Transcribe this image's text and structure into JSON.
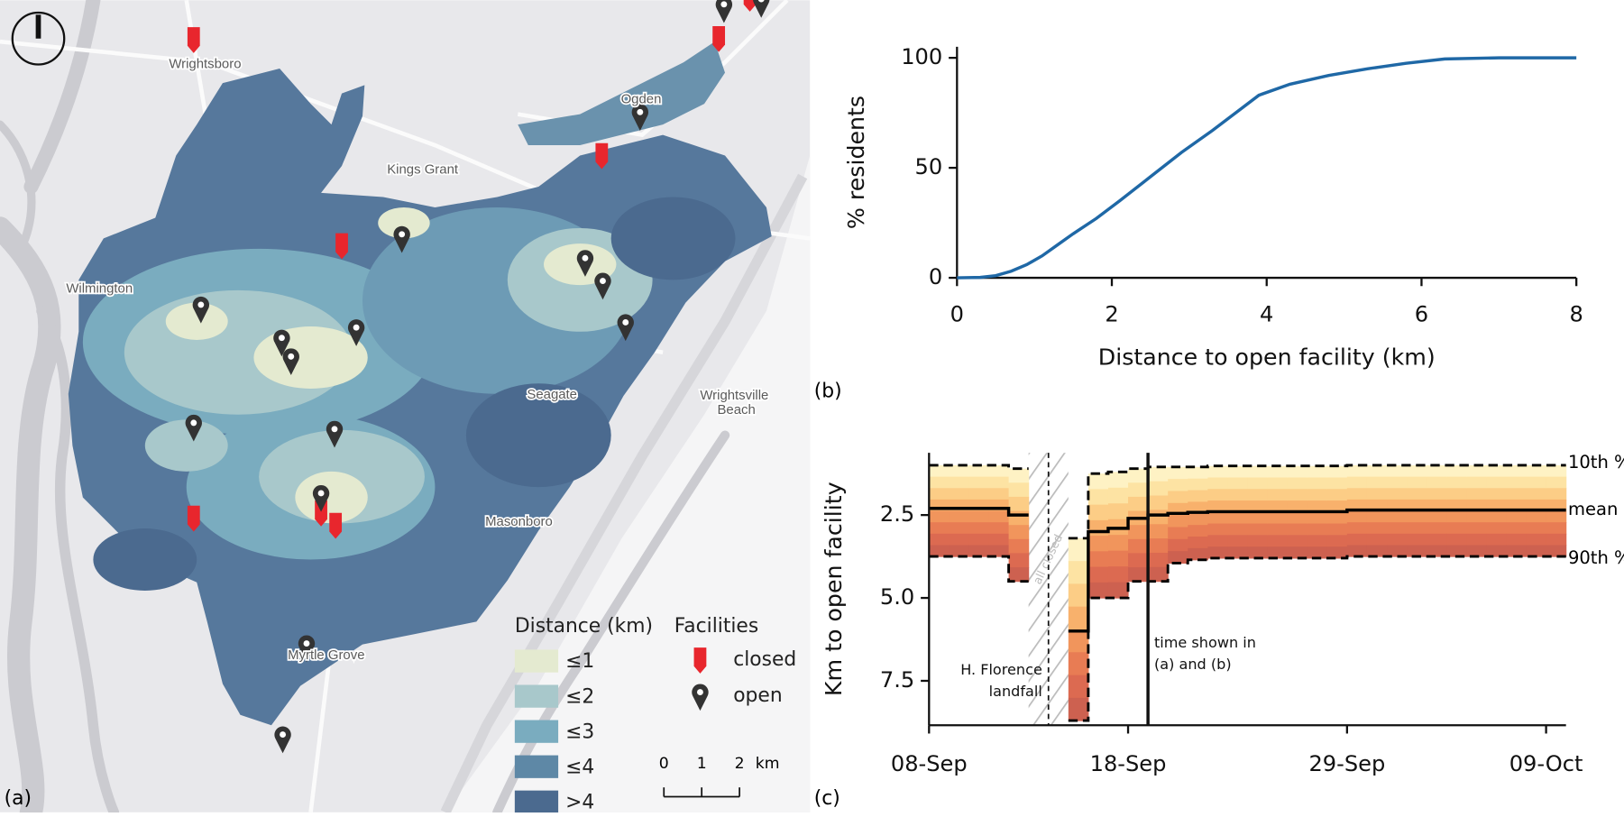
{
  "map": {
    "panel_label": "(a)",
    "places": [
      "Wrightsboro",
      "Kings Grant",
      "Wilmington",
      "Ogden",
      "Seagate",
      "Wrightsville",
      "Beach",
      "Masonboro",
      "Myrtle Grove"
    ],
    "legend": {
      "title": "Distance (km)",
      "items": [
        {
          "label": "≤1",
          "color": "#e4ead0"
        },
        {
          "label": "≤2",
          "color": "#a8c8cb"
        },
        {
          "label": "≤3",
          "color": "#7aacbf"
        },
        {
          "label": "≤4",
          "color": "#5e88a6"
        },
        {
          "label": ">4",
          "color": "#4b6a8f"
        }
      ]
    },
    "facilities_legend": {
      "title": "Facilities",
      "items": [
        {
          "label": "closed",
          "color": "#e8262d"
        },
        {
          "label": "open",
          "color": "#333333"
        }
      ]
    },
    "scale": {
      "labels": [
        "0",
        "1",
        "2"
      ],
      "unit": "km"
    }
  },
  "chart_data": [
    {
      "type": "line",
      "panel_label": "(b)",
      "x_label": "Distance to open facility (km)",
      "y_label": "% residents",
      "color": "#1f68a6",
      "x": [
        0,
        0.3,
        0.5,
        0.7,
        0.9,
        1.1,
        1.3,
        1.5,
        1.8,
        2.1,
        2.5,
        2.9,
        3.3,
        3.6,
        3.9,
        4.3,
        4.8,
        5.3,
        5.8,
        6.3,
        7,
        8
      ],
      "values": [
        0,
        0.2,
        1,
        3,
        6,
        10,
        15,
        20,
        27,
        35,
        46,
        57,
        67,
        75,
        83,
        88,
        92,
        95,
        97.5,
        99.5,
        100,
        100
      ],
      "xlim": [
        0,
        8
      ],
      "xticks": [
        0,
        2,
        4,
        6,
        8
      ],
      "ylim": [
        0,
        105
      ],
      "yticks": [
        0,
        50,
        100
      ]
    },
    {
      "type": "step",
      "panel_label": "(c)",
      "y_label": "Km to open facility",
      "x": [
        "08-Sep",
        "09-Sep",
        "10-Sep",
        "11-Sep",
        "12-Sep",
        "13-Sep",
        "14-Sep",
        "15-Sep",
        "16-Sep",
        "17-Sep",
        "18-Sep",
        "19-Sep",
        "20-Sep",
        "21-Sep",
        "22-Sep",
        "23-Sep",
        "24-Sep",
        "25-Sep",
        "26-Sep",
        "27-Sep",
        "28-Sep",
        "29-Sep",
        "30-Sep",
        "01-Oct",
        "02-Oct",
        "03-Oct",
        "04-Oct",
        "05-Oct",
        "06-Oct",
        "07-Oct",
        "08-Oct",
        "09-Oct",
        "10-Oct"
      ],
      "series": [
        {
          "name": "10th %",
          "color": "#000000",
          "dashed": true,
          "values": [
            1.0,
            1.0,
            1.0,
            1.0,
            1.1,
            null,
            null,
            3.2,
            1.25,
            1.2,
            1.1,
            1.05,
            1.05,
            1.05,
            1.02,
            1.02,
            1.02,
            1.02,
            1.02,
            1.02,
            1.02,
            1.0,
            1.0,
            1.0,
            1.0,
            1.0,
            1.0,
            1.0,
            1.0,
            1.0,
            1.0,
            1.0,
            1.0
          ]
        },
        {
          "name": "mean",
          "color": "#000000",
          "dashed": false,
          "values": [
            2.3,
            2.3,
            2.3,
            2.3,
            2.5,
            null,
            null,
            6.0,
            3.0,
            2.9,
            2.6,
            2.5,
            2.45,
            2.42,
            2.4,
            2.4,
            2.4,
            2.4,
            2.4,
            2.4,
            2.4,
            2.35,
            2.35,
            2.35,
            2.35,
            2.35,
            2.35,
            2.35,
            2.35,
            2.35,
            2.35,
            2.35,
            2.35
          ]
        },
        {
          "name": "90th %",
          "color": "#000000",
          "dashed": true,
          "values": [
            3.75,
            3.75,
            3.75,
            3.75,
            4.5,
            null,
            null,
            8.7,
            5.0,
            5.0,
            4.5,
            4.5,
            3.95,
            3.85,
            3.8,
            3.8,
            3.8,
            3.8,
            3.8,
            3.8,
            3.8,
            3.75,
            3.75,
            3.75,
            3.75,
            3.75,
            3.75,
            3.75,
            3.75,
            3.75,
            3.75,
            3.75,
            3.75
          ]
        }
      ],
      "band_colors": [
        "#fef2c4",
        "#fde3a3",
        "#fccd86",
        "#f8b16c",
        "#f1955c",
        "#e87c54",
        "#dc6a51",
        "#cd6150"
      ],
      "xlim": [
        "08-Sep",
        "10-Oct"
      ],
      "xticks": [
        "08-Sep",
        "18-Sep",
        "29-Sep",
        "09-Oct"
      ],
      "ylim": [
        8.84,
        0.625
      ],
      "yticks": [
        2.5,
        {
          "value": 5,
          "label": "5.0"
        },
        {
          "value": 7.5,
          "label": "7.5"
        }
      ],
      "annotations": {
        "landfall": {
          "text": [
            "H. Florence",
            "landfall"
          ],
          "x": "14-Sep"
        },
        "shown": {
          "text": [
            "time shown in",
            "(a) and (b)"
          ],
          "x": "19-Sep"
        },
        "all_closed": {
          "text": "all closed",
          "x": [
            "13-Sep",
            "15-Sep"
          ]
        }
      }
    }
  ]
}
